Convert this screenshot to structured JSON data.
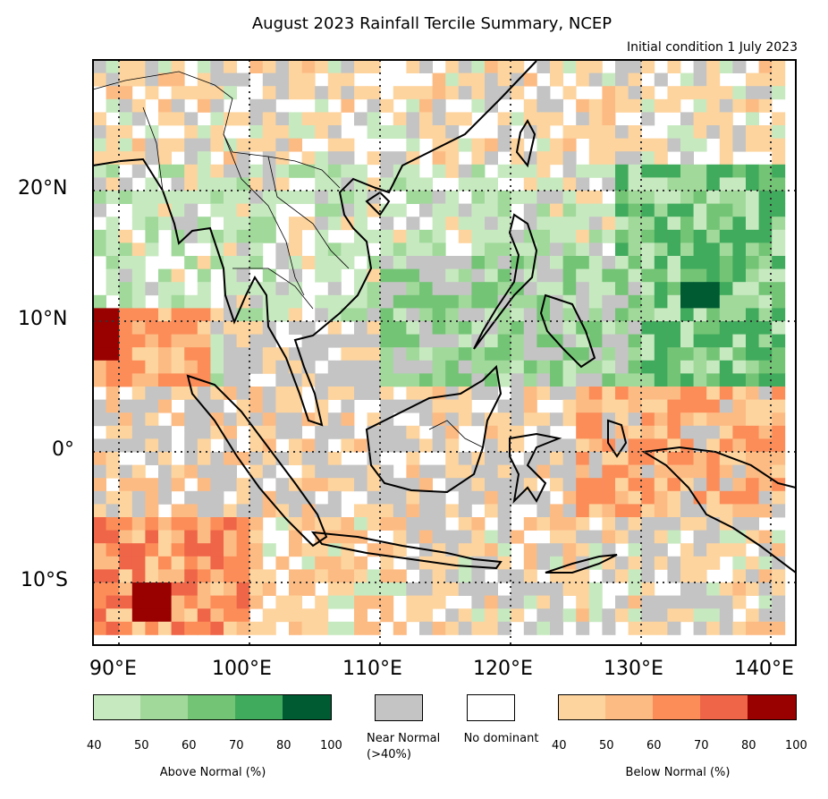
{
  "title": "August 2023 Rainfall Tercile Summary, NCEP",
  "subtitle": "Initial condition 1 July 2023",
  "lat_labels": [
    "20°N",
    "10°N",
    "0°",
    "10°S"
  ],
  "lon_labels": [
    "90°E",
    "100°E",
    "110°E",
    "120°E",
    "130°E",
    "140°E"
  ],
  "legend": {
    "above": {
      "caption": "Above Normal (%)",
      "ticks": [
        "40",
        "50",
        "60",
        "70",
        "80",
        "100"
      ],
      "colors": [
        "#c7e9c0",
        "#a1d99b",
        "#74c476",
        "#41ab5d",
        "#005a32"
      ]
    },
    "near": {
      "caption": "Near Normal (>40%)",
      "color": "#c4c4c4"
    },
    "none": {
      "caption": "No dominant",
      "color": "#ffffff"
    },
    "below": {
      "caption": "Below Normal (%)",
      "ticks": [
        "40",
        "50",
        "60",
        "70",
        "80",
        "100"
      ],
      "colors": [
        "#fdd49e",
        "#fdbb84",
        "#fc8d59",
        "#ef6548",
        "#990000"
      ]
    }
  }
}
